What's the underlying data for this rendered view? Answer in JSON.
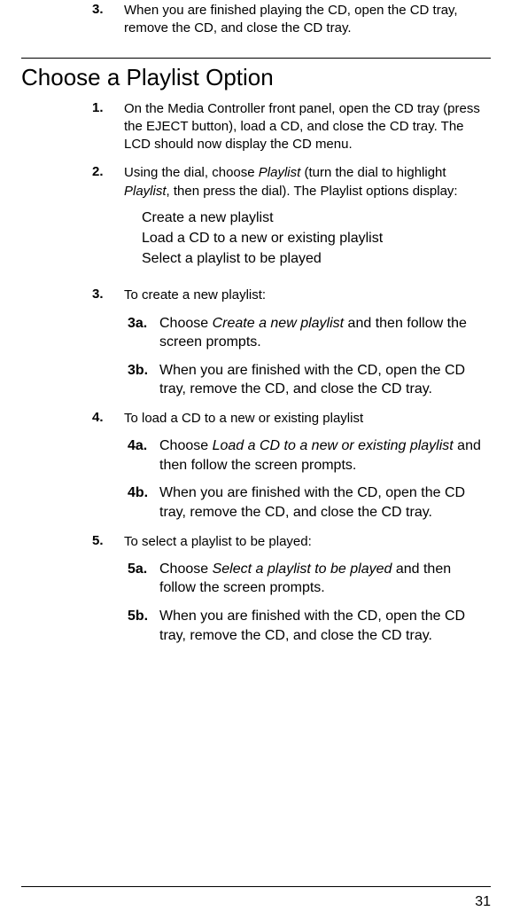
{
  "page_number": "31",
  "top_step": {
    "num": "3.",
    "text": "When you are finished playing the CD, open the CD tray, remove the CD, and close the CD tray."
  },
  "heading": "Choose a Playlist Option",
  "s1": {
    "num": "1.",
    "text": "On the Media Controller front panel, open the CD tray (press the EJECT button), load a CD, and close the CD tray. The LCD should now display the CD menu."
  },
  "s2": {
    "num": "2.",
    "pre": "Using the dial, choose ",
    "em1": "Playlist",
    "mid": " (turn the dial to highlight ",
    "em2": "Playlist",
    "post": ", then press the dial). The Playlist options display:",
    "opt1": "Create a new playlist",
    "opt2": "Load a CD to a new or existing playlist",
    "opt3": "Select a playlist to be played"
  },
  "s3": {
    "num": "3.",
    "text": "To create a new playlist:",
    "a_num": "3a.",
    "a_pre": "Choose ",
    "a_em": "Create a new playlist",
    "a_post": " and then follow the screen prompts.",
    "b_num": "3b.",
    "b_text": "When you are finished with the CD, open the CD tray, remove the CD, and close the CD tray."
  },
  "s4": {
    "num": "4.",
    "text": "To load a CD to a new or existing playlist",
    "a_num": "4a.",
    "a_pre": "Choose ",
    "a_em": "Load a CD to a new or existing playlist",
    "a_post": " and then follow the screen prompts.",
    "b_num": "4b.",
    "b_text": "When you are finished with the CD, open the CD tray, remove the CD, and close the CD tray."
  },
  "s5": {
    "num": "5.",
    "text": "To select a playlist to be played:",
    "a_num": "5a.",
    "a_pre": "Choose ",
    "a_em": "Select a playlist to be played",
    "a_post": " and then follow the screen prompts.",
    "b_num": "5b.",
    "b_text": "When you are finished with the CD, open the CD tray, remove the CD, and close the CD tray."
  }
}
